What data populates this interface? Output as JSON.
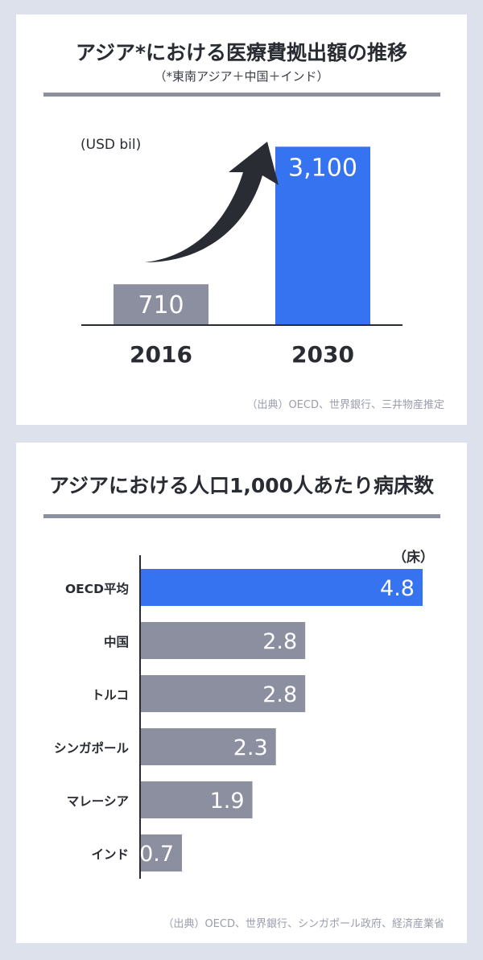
{
  "colors": {
    "background": "#dde1ec",
    "panel": "#ffffff",
    "highlight_bar": "#3573f0",
    "default_bar": "#8c8fa0",
    "arrow": "#2a2c33"
  },
  "chart_data": [
    {
      "type": "bar",
      "orientation": "vertical",
      "title": "アジア*における医療費拠出額の推移",
      "subtitle": "（*東南アジア＋中国＋インド）",
      "unit_label": "(USD bil)",
      "categories": [
        "2016",
        "2030"
      ],
      "values": [
        710,
        3100
      ],
      "value_labels": [
        "710",
        "3,100"
      ],
      "highlight_index": 1,
      "ylim": [
        0,
        3300
      ],
      "grid": false,
      "annotation": "upward-growth-arrow",
      "source": "（出典）OECD、世界銀行、三井物産推定"
    },
    {
      "type": "bar",
      "orientation": "horizontal",
      "title": "アジアにおける人口1,000人あたり病床数",
      "unit_label": "（床）",
      "categories": [
        "OECD平均",
        "中国",
        "トルコ",
        "シンガポール",
        "マレーシア",
        "インド"
      ],
      "values": [
        4.8,
        2.8,
        2.8,
        2.3,
        1.9,
        0.7
      ],
      "value_labels": [
        "4.8",
        "2.8",
        "2.8",
        "2.3",
        "1.9",
        "0.7"
      ],
      "highlight_index": 0,
      "xlim": [
        0,
        4.8
      ],
      "grid": false,
      "source": "（出典）OECD、世界銀行、シンガポール政府、経済産業省"
    }
  ]
}
